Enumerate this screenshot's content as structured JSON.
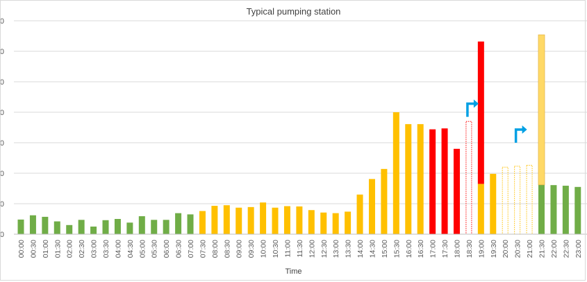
{
  "chart_data": {
    "type": "bar",
    "title": "Typical pumping station",
    "xlabel": "Time",
    "ylabel": "",
    "ylim": [
      0,
      700
    ],
    "y_ticks": [
      0,
      100,
      200,
      300,
      400,
      500,
      600,
      700
    ],
    "y_tick_labels": [
      "0",
      "00",
      "00",
      "00",
      "00",
      "00",
      "00",
      "00"
    ],
    "grid": true,
    "colors": {
      "green": "#70ad47",
      "amber": "#ffc000",
      "red": "#ff0000",
      "pale_amber": "#ffd966",
      "arrow_blue": "#00a0e4",
      "grid": "#d9d9d9",
      "axis": "#bfbfbf",
      "text": "#595959"
    },
    "categories": [
      "00:00",
      "00:30",
      "01:00",
      "01:30",
      "02:00",
      "02:30",
      "03:00",
      "03:30",
      "04:00",
      "04:30",
      "05:00",
      "05:30",
      "06:00",
      "06:30",
      "07:00",
      "07:30",
      "08:00",
      "08:30",
      "09:00",
      "09:30",
      "10:00",
      "10:30",
      "11:00",
      "11:30",
      "12:00",
      "12:30",
      "13:00",
      "13:30",
      "14:00",
      "14:30",
      "15:00",
      "15:30",
      "16:00",
      "16:30",
      "17:00",
      "17:30",
      "18:00",
      "18:30",
      "19:00",
      "19:30",
      "20:00",
      "20:30",
      "21:00",
      "21:30",
      "22:00",
      "22:30",
      "23:00"
    ],
    "values": [
      48,
      62,
      57,
      42,
      30,
      47,
      25,
      46,
      50,
      38,
      59,
      47,
      47,
      69,
      65,
      76,
      93,
      95,
      87,
      89,
      104,
      87,
      92,
      91,
      79,
      71,
      69,
      74,
      130,
      181,
      214,
      400,
      361,
      361,
      344,
      347,
      280,
      0,
      165,
      198,
      0,
      0,
      0,
      162,
      161,
      159,
      155
    ],
    "bar_colors": [
      "green",
      "green",
      "green",
      "green",
      "green",
      "green",
      "green",
      "green",
      "green",
      "green",
      "green",
      "green",
      "green",
      "green",
      "green",
      "amber",
      "amber",
      "amber",
      "amber",
      "amber",
      "amber",
      "amber",
      "amber",
      "amber",
      "amber",
      "amber",
      "amber",
      "amber",
      "amber",
      "amber",
      "amber",
      "amber",
      "amber",
      "amber",
      "red",
      "red",
      "red",
      "red",
      "amber",
      "amber",
      "amber",
      "amber",
      "amber",
      "green",
      "green",
      "green",
      "green"
    ],
    "stacked_extra": [
      {
        "category": "19:00",
        "base": 165,
        "value": 467,
        "color": "red"
      },
      {
        "category": "21:30",
        "base": 162,
        "value": 492,
        "color": "pale_amber"
      }
    ],
    "outline_bars": [
      {
        "category": "18:30",
        "value": 370,
        "color": "red",
        "style": "dotted"
      },
      {
        "category": "20:00",
        "value": 220,
        "color": "amber",
        "style": "dotted"
      },
      {
        "category": "20:30",
        "value": 223,
        "color": "amber",
        "style": "dotted"
      },
      {
        "category": "21:00",
        "value": 226,
        "color": "amber",
        "style": "dotted"
      }
    ],
    "arrows": [
      {
        "category": "18:30",
        "value": 385,
        "color": "arrow_blue"
      },
      {
        "category": "20:30",
        "value": 300,
        "color": "arrow_blue"
      }
    ]
  }
}
